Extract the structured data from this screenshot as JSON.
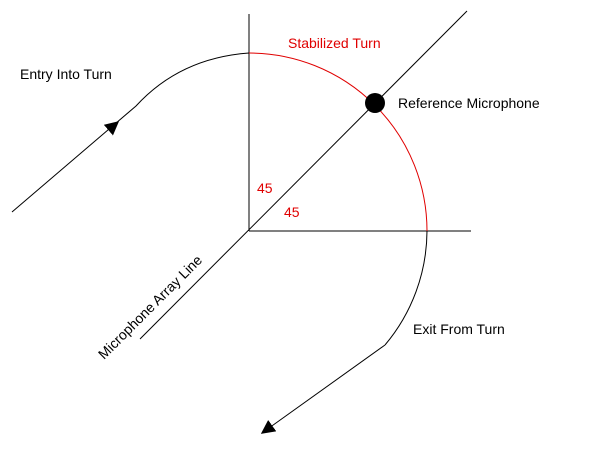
{
  "labels": {
    "stabilized_turn": "Stabilized Turn",
    "entry": "Entry Into Turn",
    "reference_microphone": "Reference Microphone",
    "angle_upper": "45",
    "angle_lower": "45",
    "array_line": "Microphone Array Line",
    "exit": "Exit From Turn"
  }
}
